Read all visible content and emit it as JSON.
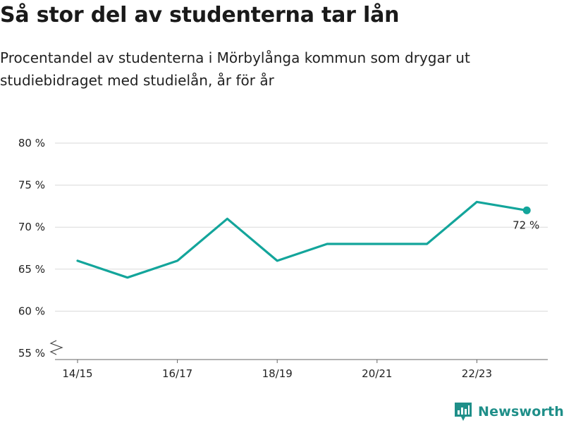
{
  "title": "Så stor del av studenterna tar lån",
  "subtitle": "Procentandel av studenterna i Mörbylånga kommun som drygar ut studiebidraget med studielån, år för år",
  "brand": {
    "name": "Newsworthy",
    "color": "#1f8f89",
    "icon": "newsworthy-logo-icon"
  },
  "colors": {
    "line": "#13a59b",
    "grid": "#d9d9d9",
    "axis": "#666666"
  },
  "chart_data": {
    "type": "line",
    "title": "Så stor del av studenterna tar lån",
    "xlabel": "",
    "ylabel": "",
    "x": [
      "14/15",
      "15/16",
      "16/17",
      "17/18",
      "18/19",
      "19/20",
      "20/21",
      "21/22",
      "22/23",
      "23/24"
    ],
    "x_tick_labels": [
      "14/15",
      "16/17",
      "18/19",
      "20/21",
      "22/23"
    ],
    "y_ticks": [
      55,
      60,
      65,
      70,
      75,
      80
    ],
    "y_tick_labels": [
      "55 %",
      "60 %",
      "65 %",
      "70 %",
      "75 %",
      "80 %"
    ],
    "ylim": [
      55,
      80
    ],
    "y_axis_break": true,
    "grid": true,
    "series": [
      {
        "values": [
          66,
          64,
          66,
          71,
          66,
          68,
          68,
          68,
          73,
          72
        ]
      }
    ],
    "last_point_label": "72 %"
  }
}
